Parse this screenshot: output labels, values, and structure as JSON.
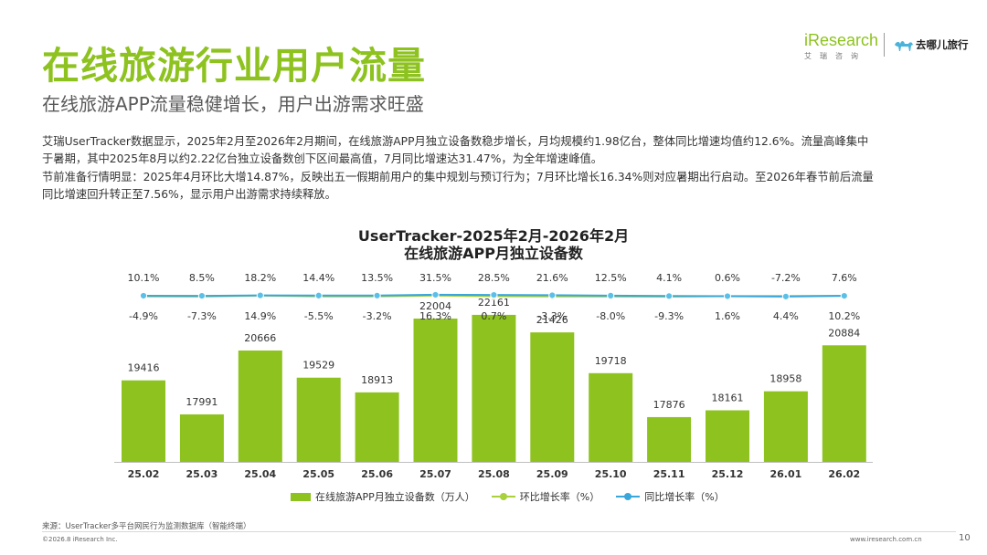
{
  "header": {
    "title": "在线旅游行业用户流量",
    "subtitle": "在线旅游APP流量稳健增长，用户出游需求旺盛"
  },
  "logos": {
    "iresearch_text": "iResearch",
    "iresearch_sub": "艾瑞咨询",
    "qunar_text": "去哪儿旅行"
  },
  "body": {
    "para1_line1": "艾瑞UserTracker数据显示，2025年2月至2026年2月期间，在线旅游APP月独立设备数稳步增长，月均规模约1.98亿台，整体同比增速均值约12.6%。流量高峰集中",
    "para1_line2": "于暑期，其中2025年8月以约2.22亿台独立设备数创下区间最高值，7月同比增速达31.47%，为全年增速峰值。",
    "para2_line1": "节前准备行情明显：2025年4月环比大增14.87%，反映出五一假期前用户的集中规划与预订行为；7月环比增长16.34%则对应暑期出行启动。至2026年春节前后流量",
    "para2_line2": "同比增速回升转正至7.56%，显示用户出游需求持续释放。"
  },
  "chart_data": {
    "type": "bar",
    "title_line1": "UserTracker-2025年2月-2026年2月",
    "title_line2": "在线旅游APP月独立设备数",
    "categories": [
      "25.02",
      "25.03",
      "25.04",
      "25.05",
      "25.06",
      "25.07",
      "25.08",
      "25.09",
      "25.10",
      "25.11",
      "25.12",
      "26.01",
      "26.02"
    ],
    "series": [
      {
        "name": "在线旅游APP月独立设备数（万人）",
        "type": "bar",
        "values": [
          19416,
          17991,
          20666,
          19529,
          18913,
          22004,
          22161,
          21426,
          19718,
          17876,
          18161,
          18958,
          20884
        ]
      },
      {
        "name": "环比增长率（%）",
        "type": "line",
        "values": [
          -4.9,
          -7.3,
          14.9,
          -5.5,
          -3.2,
          16.3,
          0.7,
          -3.3,
          -8.0,
          -9.3,
          1.6,
          4.4,
          10.2
        ],
        "labels": [
          "-4.9%",
          "-7.3%",
          "14.9%",
          "-5.5%",
          "-3.2%",
          "16.3%",
          "0.7%",
          "-3.3%",
          "-8.0%",
          "-9.3%",
          "1.6%",
          "4.4%",
          "10.2%"
        ]
      },
      {
        "name": "同比增长率（%）",
        "type": "line",
        "values": [
          10.1,
          8.5,
          18.2,
          14.4,
          13.5,
          31.5,
          28.5,
          21.6,
          12.5,
          4.1,
          0.6,
          -7.2,
          7.6
        ],
        "labels": [
          "10.1%",
          "8.5%",
          "18.2%",
          "14.4%",
          "13.5%",
          "31.5%",
          "28.5%",
          "21.6%",
          "12.5%",
          "4.1%",
          "0.6%",
          "-7.2%",
          "7.6%"
        ]
      }
    ],
    "colors": {
      "bar": "#8dc21f",
      "mom": "#a8d13b",
      "yoy": "#39a6dc",
      "marker": "#5bc0e8"
    },
    "grid": false,
    "legend_position": "bottom"
  },
  "footer": {
    "source": "来源：UserTracker多平台网民行为监测数据库（智能终端）",
    "copyright": "©2026.8 iResearch Inc.",
    "website": "www.iresearch.com.cn",
    "page": "10"
  }
}
